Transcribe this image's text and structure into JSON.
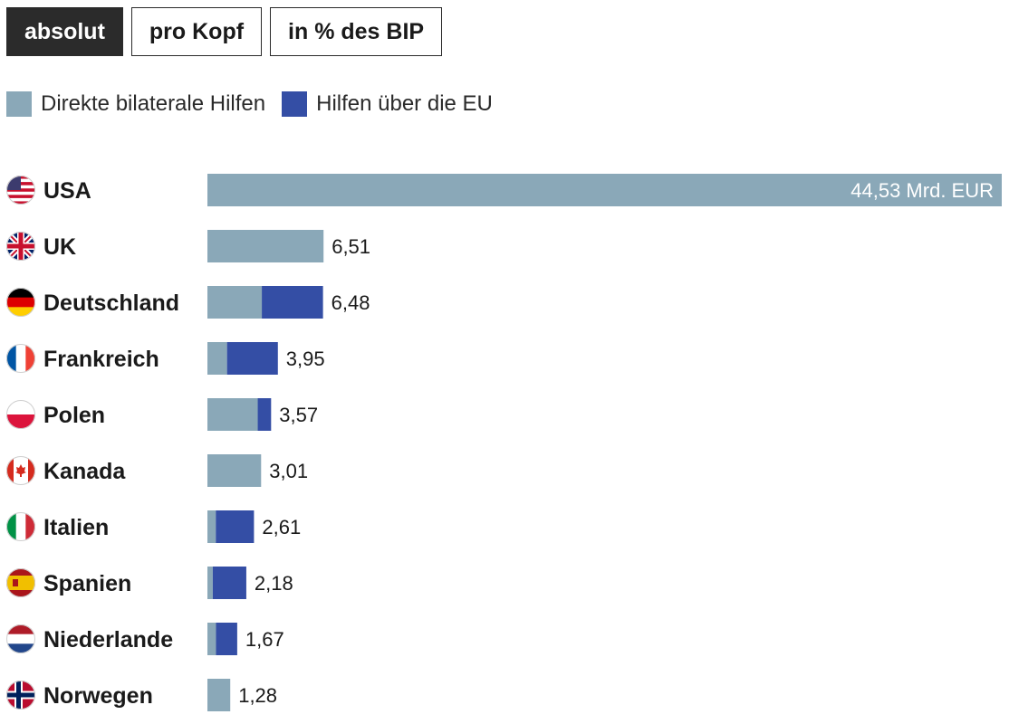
{
  "tabs": [
    {
      "label": "absolut",
      "active": true
    },
    {
      "label": "pro Kopf",
      "active": false
    },
    {
      "label": "in % des BIP",
      "active": false
    }
  ],
  "legend": [
    {
      "label": "Direkte bilaterale Hilfen",
      "color": "#8aa8b8"
    },
    {
      "label": "Hilfen über die EU",
      "color": "#344ea5"
    }
  ],
  "chart_data": {
    "type": "bar",
    "orientation": "horizontal",
    "stacked": true,
    "unit": "Mrd. EUR",
    "categories": [
      "USA",
      "UK",
      "Deutschland",
      "Frankreich",
      "Polen",
      "Kanada",
      "Italien",
      "Spanien",
      "Niederlande",
      "Norwegen"
    ],
    "flags": [
      "us",
      "uk",
      "de",
      "fr",
      "pl",
      "ca",
      "it",
      "es",
      "nl",
      "no"
    ],
    "series": [
      {
        "name": "Direkte bilaterale Hilfen",
        "color": "#8aa8b8",
        "values": [
          44.53,
          6.51,
          3.05,
          1.1,
          2.82,
          3.01,
          0.47,
          0.3,
          0.48,
          1.28
        ]
      },
      {
        "name": "Hilfen über die EU",
        "color": "#344ea5",
        "values": [
          0,
          0,
          3.43,
          2.85,
          0.75,
          0,
          2.14,
          1.88,
          1.19,
          0
        ]
      }
    ],
    "labels": [
      "44,53 Mrd. EUR",
      "6,51",
      "6,48",
      "3,95",
      "3,57",
      "3,01",
      "2,61",
      "2,18",
      "1,67",
      "1,28"
    ],
    "xlim": [
      0,
      44.53
    ]
  }
}
